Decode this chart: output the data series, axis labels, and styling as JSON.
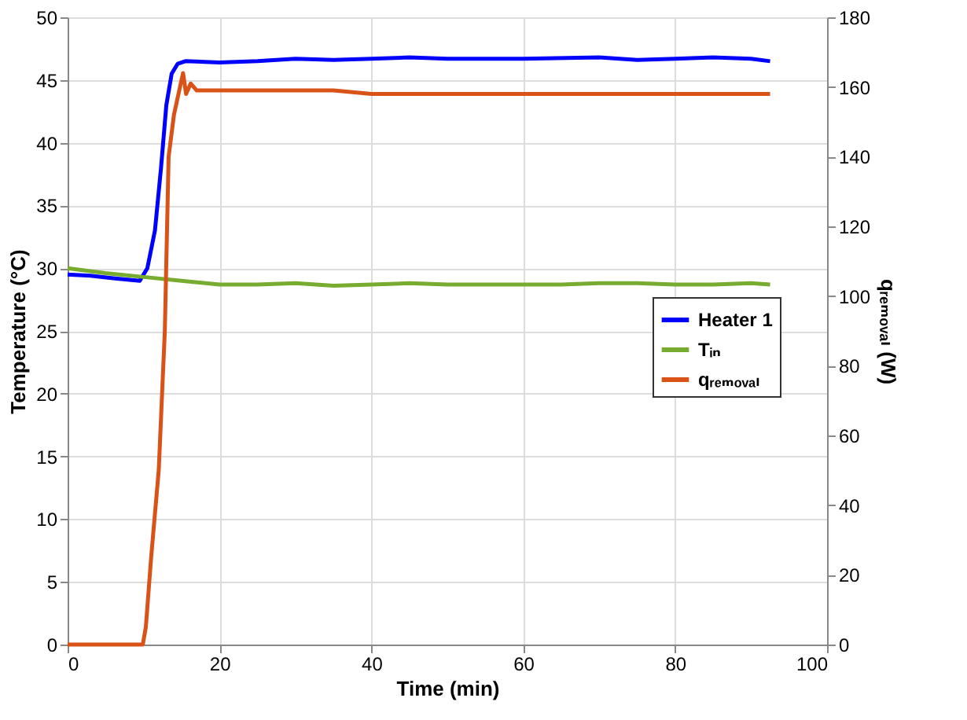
{
  "chart_data": {
    "type": "line",
    "xlabel": "Time (min)",
    "ylabel": "Temperature (°C)",
    "y2label": "qᵣₑₘₒᵥₐₗ (W)",
    "xlim": [
      0,
      100
    ],
    "xticks": [
      0,
      20,
      40,
      60,
      80,
      100
    ],
    "ylim": [
      0,
      50
    ],
    "yticks": [
      0,
      5,
      10,
      15,
      20,
      25,
      30,
      35,
      40,
      45,
      50
    ],
    "y2lim": [
      0,
      180
    ],
    "y2ticks": [
      0,
      20,
      40,
      60,
      80,
      100,
      120,
      140,
      160,
      180
    ],
    "grid": true,
    "legend": "right",
    "line_style": "solid",
    "marker": "none",
    "series": [
      {
        "name": "Heater 1",
        "color": "#0000ff",
        "x": [
          0,
          3,
          6,
          9.5,
          10.5,
          11.5,
          12.3,
          13,
          13.7,
          14.5,
          15.5,
          20,
          25,
          30,
          35,
          40,
          45,
          50,
          60,
          70,
          75,
          80,
          85,
          90,
          92.5
        ],
        "values": [
          29.5,
          29.4,
          29.2,
          29,
          30,
          33,
          38,
          43,
          45.5,
          46.3,
          46.5,
          46.4,
          46.5,
          46.7,
          46.6,
          46.7,
          46.8,
          46.7,
          46.7,
          46.8,
          46.6,
          46.7,
          46.8,
          46.7,
          46.5
        ]
      },
      {
        "name": "Tᵢₙ",
        "color": "#77ac30",
        "x": [
          0,
          5,
          10,
          15,
          20,
          25,
          30,
          35,
          40,
          45,
          50,
          55,
          60,
          65,
          70,
          75,
          80,
          85,
          90,
          92.5
        ],
        "values": [
          30,
          29.6,
          29.3,
          29,
          28.7,
          28.7,
          28.8,
          28.6,
          28.7,
          28.8,
          28.7,
          28.7,
          28.7,
          28.7,
          28.8,
          28.8,
          28.7,
          28.7,
          28.8,
          28.7
        ]
      },
      {
        "name": "qᵣₑₘₒᵥₐₗ",
        "color": "#d95319",
        "axis": "y2",
        "x": [
          0,
          5,
          9.9,
          10.3,
          11,
          12,
          12.8,
          13.3,
          14,
          14.6,
          15.2,
          15.6,
          16.2,
          17,
          20,
          25,
          30,
          35,
          40,
          50,
          60,
          70,
          80,
          90,
          92.5
        ],
        "values": [
          0,
          0,
          0,
          5,
          25,
          50,
          90,
          140,
          152,
          158,
          164,
          158,
          161,
          159,
          159,
          159,
          159,
          159,
          158,
          158,
          158,
          158,
          158,
          158,
          158
        ]
      }
    ]
  }
}
